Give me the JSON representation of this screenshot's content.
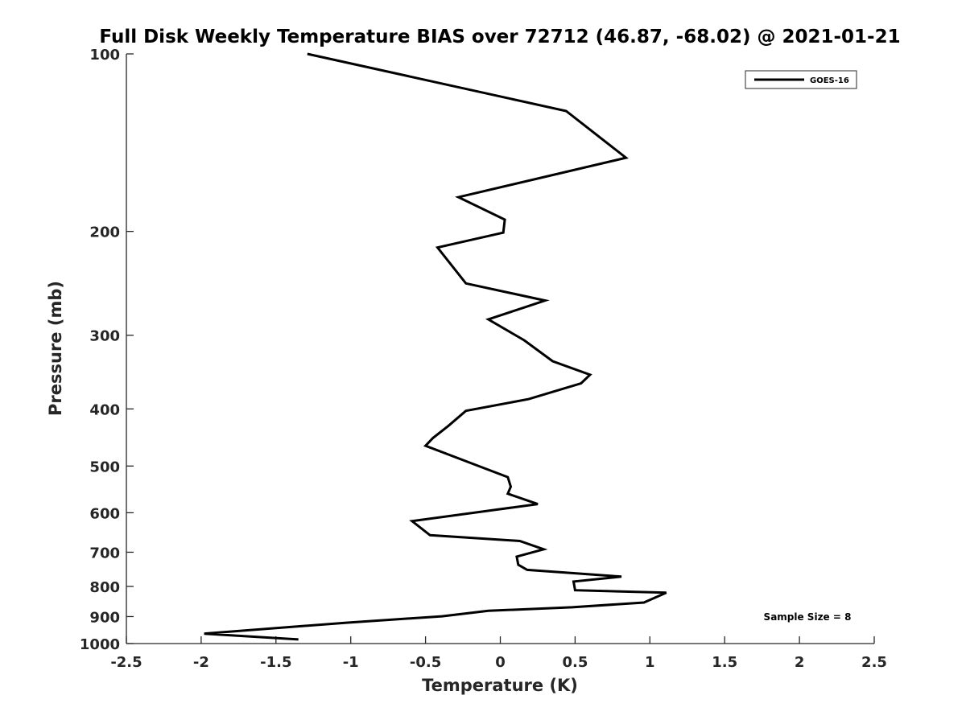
{
  "chart_data": {
    "type": "line",
    "title": "Full Disk Weekly Temperature BIAS over 72712 (46.87, -68.02) @ 2021-01-21",
    "xlabel": "Temperature (K)",
    "ylabel": "Pressure (mb)",
    "xlim": [
      -2.5,
      2.5
    ],
    "ylim": [
      100,
      1000
    ],
    "y_scale": "log",
    "y_reversed": true,
    "x_ticks": [
      "-2.5",
      "-2",
      "-1.5",
      "-1",
      "-0.5",
      "0",
      "0.5",
      "1",
      "1.5",
      "2",
      "2.5"
    ],
    "y_ticks": [
      "100",
      "200",
      "300",
      "400",
      "500",
      "600",
      "700",
      "800",
      "900",
      "1000"
    ],
    "grid": false,
    "legend": {
      "position": "top-right",
      "entries": [
        "GOES-16"
      ]
    },
    "annotation": "Sample Size = 8",
    "series": [
      {
        "name": "GOES-16",
        "color": "#000000",
        "points": [
          [
            -1.29,
            100
          ],
          [
            0.44,
            125
          ],
          [
            0.84,
            150
          ],
          [
            -0.28,
            175
          ],
          [
            0.03,
            191
          ],
          [
            0.02,
            201
          ],
          [
            -0.42,
            213
          ],
          [
            -0.23,
            245
          ],
          [
            0.3,
            262
          ],
          [
            -0.08,
            282
          ],
          [
            0.16,
            306
          ],
          [
            0.35,
            332
          ],
          [
            0.6,
            350
          ],
          [
            0.54,
            362
          ],
          [
            0.19,
            385
          ],
          [
            -0.23,
            403
          ],
          [
            -0.35,
            428
          ],
          [
            -0.45,
            448
          ],
          [
            -0.5,
            462
          ],
          [
            -0.1,
            505
          ],
          [
            0.05,
            522
          ],
          [
            0.07,
            542
          ],
          [
            0.05,
            557
          ],
          [
            0.25,
            580
          ],
          [
            -0.59,
            620
          ],
          [
            -0.47,
            655
          ],
          [
            0.13,
            670
          ],
          [
            0.29,
            692
          ],
          [
            0.11,
            712
          ],
          [
            0.12,
            735
          ],
          [
            0.18,
            750
          ],
          [
            0.81,
            770
          ],
          [
            0.49,
            785
          ],
          [
            0.5,
            812
          ],
          [
            1.11,
            820
          ],
          [
            0.96,
            852
          ],
          [
            0.48,
            868
          ],
          [
            -0.08,
            880
          ],
          [
            -0.39,
            899
          ],
          [
            -1.03,
            922
          ],
          [
            -1.98,
            962
          ],
          [
            -1.35,
            984
          ]
        ]
      }
    ]
  }
}
